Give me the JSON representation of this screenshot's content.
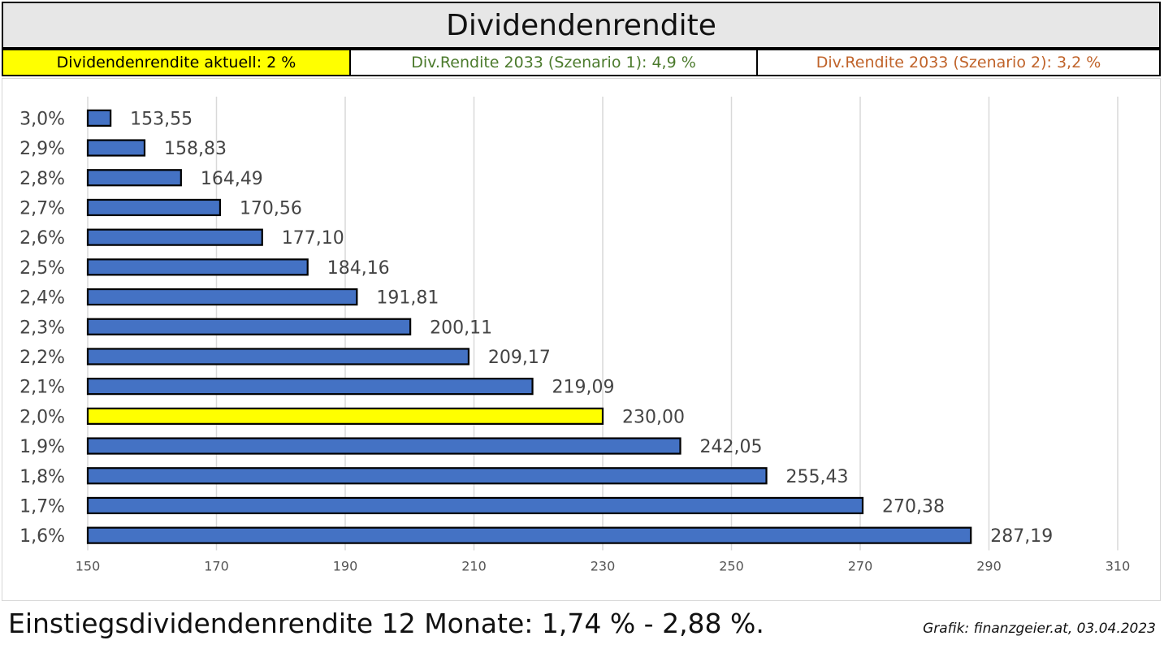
{
  "header": {
    "title": "Dividendenrendite",
    "current_yield": "Dividendenrendite aktuell: 2 %",
    "scenario1": "Div.Rendite 2033 (Szenario 1): 4,9 %",
    "scenario2": "Div.Rendite 2033 (Szenario 2): 3,2 %"
  },
  "footer": {
    "summary": "Einstiegsdividendenrendite 12 Monate: 1,74 % - 2,88 %.",
    "credit": "Grafik: finanzgeier.at, 03.04.2023"
  },
  "colors": {
    "bar": "#4472c4",
    "highlight_bar": "#ffff00",
    "highlight_header": "#ffff00",
    "scenario1_text": "#4b7a2c",
    "scenario2_text": "#c0632a",
    "gridline": "#d9d9d9"
  },
  "chart_data": {
    "type": "bar",
    "orientation": "horizontal",
    "categories": [
      "3,0%",
      "2,9%",
      "2,8%",
      "2,7%",
      "2,6%",
      "2,5%",
      "2,4%",
      "2,3%",
      "2,2%",
      "2,1%",
      "2,0%",
      "1,9%",
      "1,8%",
      "1,7%",
      "1,6%"
    ],
    "values": [
      153.55,
      158.83,
      164.49,
      170.56,
      177.1,
      184.16,
      191.81,
      200.11,
      209.17,
      219.09,
      230.0,
      242.05,
      255.43,
      270.38,
      287.19
    ],
    "data_labels": [
      "153,55",
      "158,83",
      "164,49",
      "170,56",
      "177,10",
      "184,16",
      "191,81",
      "200,11",
      "209,17",
      "219,09",
      "230,00",
      "242,05",
      "255,43",
      "270,38",
      "287,19"
    ],
    "highlight_category": "2,0%",
    "xlim": [
      150,
      310
    ],
    "xticks": [
      150,
      170,
      190,
      210,
      230,
      250,
      270,
      290,
      310
    ],
    "xtick_labels": [
      "150",
      "170",
      "190",
      "210",
      "230",
      "250",
      "270",
      "290",
      "310"
    ],
    "grid": "vertical",
    "legend": "none"
  }
}
